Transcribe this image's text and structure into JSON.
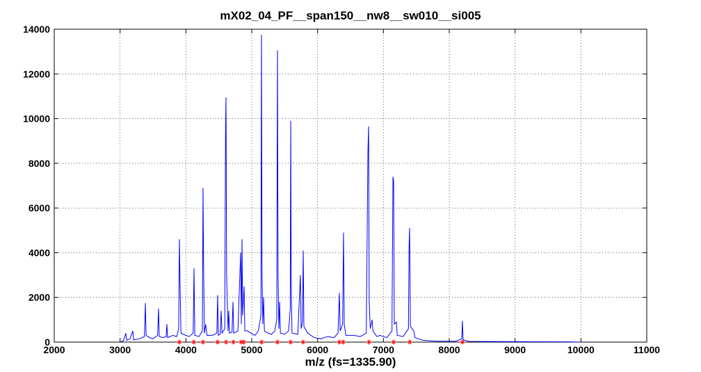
{
  "chart_data": {
    "type": "line",
    "title": "mX02_04_PF__span150__nw8__sw010__si005",
    "x_label": "m/z (fs=1335.90)",
    "xlim": [
      2000,
      11000
    ],
    "ylim": [
      0,
      14000
    ],
    "xticks": [
      2000,
      3000,
      4000,
      5000,
      6000,
      7000,
      8000,
      9000,
      10000,
      11000
    ],
    "yticks": [
      0,
      2000,
      4000,
      6000,
      8000,
      10000,
      12000,
      14000
    ],
    "grid": true,
    "series": [
      {
        "type": "line",
        "color": "#0000ff",
        "x": [
          3000,
          3050,
          3088,
          3100,
          3150,
          3194,
          3205,
          3300,
          3370,
          3384,
          3395,
          3450,
          3500,
          3570,
          3584,
          3595,
          3650,
          3700,
          3711,
          3722,
          3800,
          3860,
          3890,
          3901,
          3912,
          3925,
          4000,
          4050,
          4110,
          4123,
          4135,
          4200,
          4250,
          4260,
          4268,
          4280,
          4300,
          4320,
          4400,
          4470,
          4482,
          4492,
          4520,
          4535,
          4548,
          4590,
          4602,
          4609,
          4618,
          4640,
          4651,
          4662,
          4700,
          4715,
          4726,
          4790,
          4831,
          4842,
          4852,
          4862,
          4884,
          4895,
          4937,
          4990,
          5050,
          5100,
          5140,
          5148,
          5157,
          5168,
          5180,
          5192,
          5250,
          5300,
          5350,
          5380,
          5391,
          5400,
          5412,
          5423,
          5435,
          5500,
          5560,
          5585,
          5592,
          5600,
          5612,
          5700,
          5739,
          5750,
          5770,
          5782,
          5792,
          5850,
          5950,
          6050,
          6150,
          6250,
          6310,
          6331,
          6343,
          6380,
          6394,
          6405,
          6430,
          6550,
          6650,
          6740,
          6765,
          6775,
          6784,
          6800,
          6828,
          6840,
          6900,
          6950,
          7050,
          7130,
          7145,
          7155,
          7165,
          7197,
          7210,
          7300,
          7380,
          7390,
          7398,
          7410,
          7461,
          7480,
          7600,
          7800,
          8100,
          8190,
          8200,
          8210,
          8300,
          9000,
          9800,
          10000
        ],
        "values": [
          0,
          60,
          400,
          80,
          150,
          500,
          100,
          150,
          250,
          1750,
          300,
          200,
          150,
          300,
          1500,
          250,
          200,
          250,
          800,
          200,
          300,
          250,
          600,
          4600,
          2500,
          400,
          300,
          250,
          400,
          3300,
          300,
          250,
          500,
          6900,
          3600,
          400,
          800,
          300,
          300,
          400,
          2100,
          300,
          350,
          1400,
          400,
          600,
          9400,
          10950,
          3000,
          500,
          1400,
          400,
          450,
          1800,
          400,
          500,
          4000,
          800,
          4600,
          1200,
          2500,
          500,
          500,
          400,
          300,
          500,
          1200,
          13750,
          3000,
          800,
          2000,
          500,
          400,
          350,
          500,
          1000,
          13050,
          3000,
          600,
          1800,
          400,
          350,
          500,
          1500,
          9900,
          2500,
          400,
          350,
          3000,
          600,
          900,
          4100,
          700,
          400,
          200,
          150,
          250,
          200,
          400,
          2200,
          500,
          800,
          4900,
          800,
          300,
          300,
          250,
          400,
          8600,
          9650,
          1800,
          600,
          1000,
          500,
          250,
          300,
          200,
          500,
          7400,
          7200,
          800,
          900,
          300,
          250,
          600,
          4300,
          5100,
          700,
          500,
          200,
          80,
          40,
          40,
          150,
          950,
          100,
          30,
          20,
          10,
          0
        ]
      },
      {
        "type": "scatter",
        "color": "#ff0000",
        "x": [
          3900,
          4120,
          4260,
          4480,
          4610,
          4720,
          4840,
          4880,
          5150,
          5390,
          5590,
          5780,
          6330,
          6390,
          6780,
          7155,
          7400,
          8200
        ],
        "values": [
          0,
          0,
          0,
          0,
          0,
          0,
          0,
          0,
          0,
          0,
          0,
          0,
          0,
          0,
          0,
          0,
          0,
          0
        ]
      }
    ]
  }
}
